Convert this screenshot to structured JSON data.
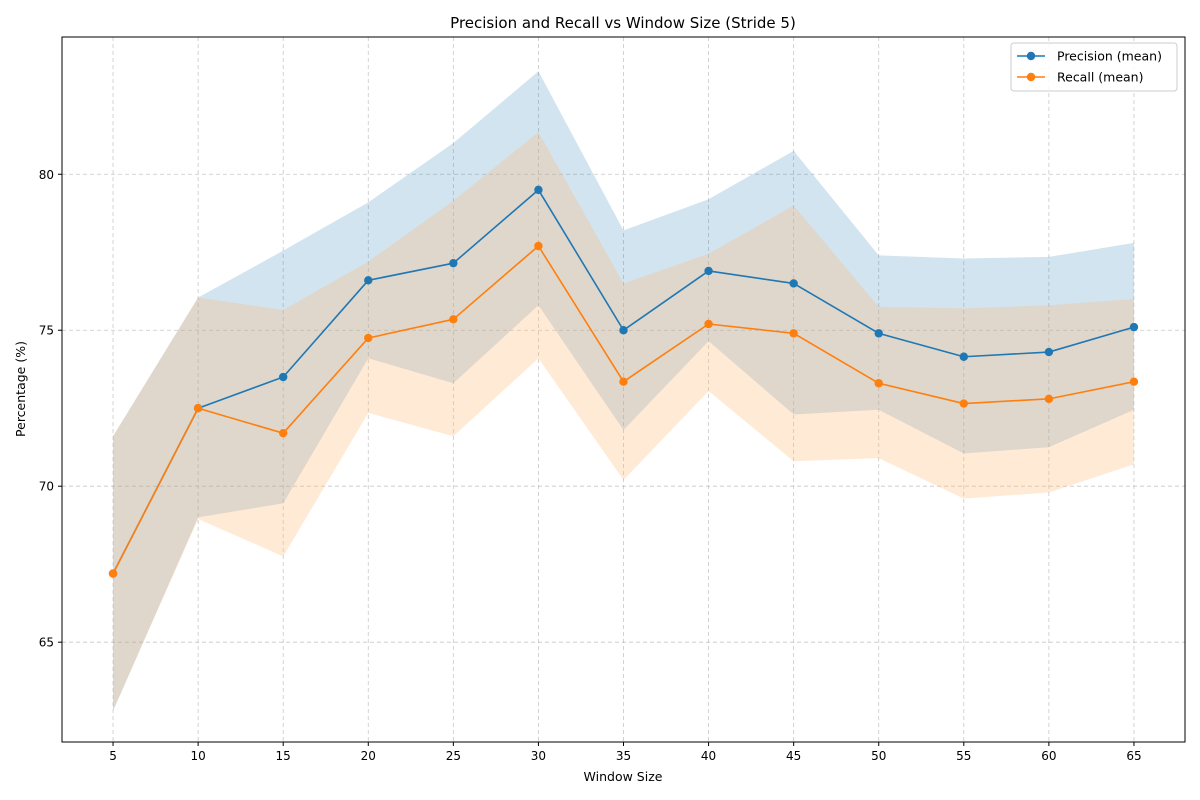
{
  "chart_data": {
    "type": "line",
    "title": "Precision and Recall vs Window Size (Stride 5)",
    "xlabel": "Window Size",
    "ylabel": "Percentage (%)",
    "x": [
      5,
      10,
      15,
      20,
      25,
      30,
      35,
      40,
      45,
      50,
      55,
      60,
      65
    ],
    "xticks": [
      "5",
      "10",
      "15",
      "20",
      "25",
      "30",
      "35",
      "40",
      "45",
      "50",
      "55",
      "60",
      "65"
    ],
    "yticks": [
      "65",
      "70",
      "75",
      "80"
    ],
    "ylim": [
      61.8,
      84.4
    ],
    "grid": true,
    "legend_position": "top-right",
    "series": [
      {
        "name": "Precision (mean)",
        "color": "#1f77b4",
        "band_color": "#1f77b4",
        "values": [
          67.2,
          72.5,
          73.5,
          76.6,
          77.15,
          79.5,
          75.0,
          76.9,
          76.5,
          74.9,
          74.15,
          74.3,
          75.1
        ],
        "lower": [
          62.8,
          69.0,
          69.45,
          74.1,
          73.3,
          75.8,
          71.8,
          74.65,
          72.3,
          72.45,
          71.05,
          71.25,
          72.45
        ],
        "upper": [
          71.6,
          76.05,
          77.55,
          79.1,
          81.0,
          83.3,
          78.2,
          79.2,
          80.75,
          77.4,
          77.3,
          77.35,
          77.8
        ]
      },
      {
        "name": "Recall (mean)",
        "color": "#ff7f0e",
        "band_color": "#ffbb78",
        "values": [
          67.2,
          72.5,
          71.7,
          74.75,
          75.35,
          77.7,
          73.35,
          75.2,
          74.9,
          73.3,
          72.65,
          72.8,
          73.35
        ],
        "lower": [
          62.8,
          68.95,
          67.75,
          72.35,
          71.6,
          74.1,
          70.2,
          73.05,
          70.8,
          70.9,
          69.6,
          69.8,
          70.7
        ],
        "upper": [
          71.6,
          76.05,
          75.65,
          77.2,
          79.15,
          81.35,
          76.5,
          77.45,
          79.0,
          75.75,
          75.7,
          75.8,
          76.0
        ]
      }
    ]
  }
}
